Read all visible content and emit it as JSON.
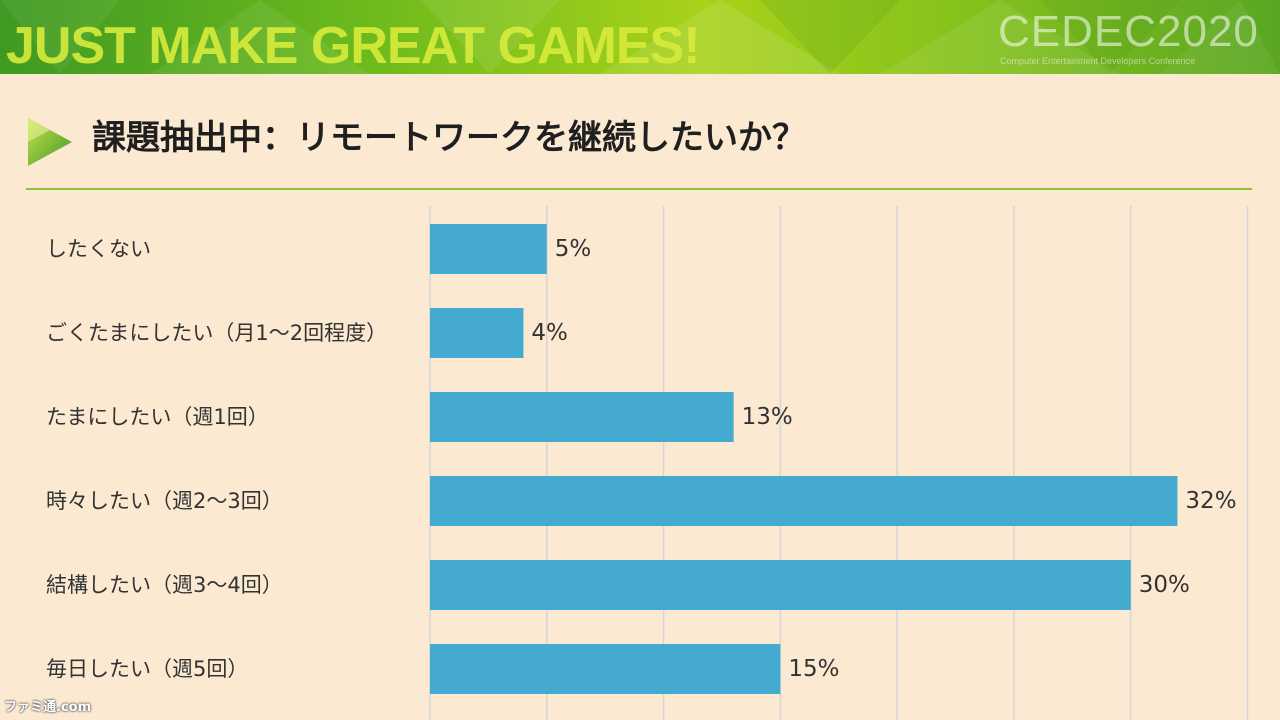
{
  "header": {
    "slogan": "JUST MAKE GREAT GAMES!",
    "logo": "CEDEC2020",
    "logo_sub": "Computer Entertainment Developers Conference",
    "colors": {
      "green_dark": "#3e9a22",
      "green_light": "#a9d21a",
      "slogan": "#d8ec3c"
    }
  },
  "slide": {
    "title": "課題抽出中：リモートワークを継続したいか？",
    "icon": "play-triangle-icon"
  },
  "chart_data": {
    "type": "bar",
    "orientation": "horizontal",
    "categories": [
      "したくない",
      "ごくたまにしたい（月1～2回程度）",
      "たまにしたい（週1回）",
      "時々したい（週2～3回）",
      "結構したい（週3～4回）",
      "毎日したい（週5回）"
    ],
    "values": [
      5,
      4,
      13,
      32,
      30,
      15
    ],
    "value_labels": [
      "5%",
      "4%",
      "13%",
      "32%",
      "30%",
      "15%"
    ],
    "xlim": [
      0,
      35
    ],
    "grid_step": 5,
    "grid": true,
    "bar_color": "#44aad0",
    "grid_color": "#d6d6d6"
  },
  "watermark": "ファミ通.com"
}
